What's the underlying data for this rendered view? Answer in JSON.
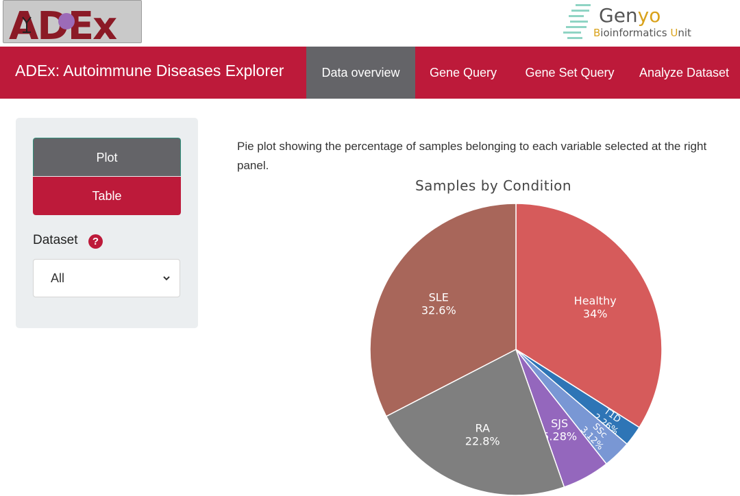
{
  "header": {
    "logo_text": "ADEx",
    "partner_logo": {
      "title_prefix": "Gen",
      "title_suffix": "yo",
      "subtitle_b": "B",
      "subtitle_mid": "ioinformatics ",
      "subtitle_u": "U",
      "subtitle_end": "nit"
    }
  },
  "navbar": {
    "brand": "ADEx: Autoimmune Diseases Explorer",
    "items": [
      {
        "label": "Data overview",
        "active": true
      },
      {
        "label": "Gene Query",
        "active": false
      },
      {
        "label": "Gene Set Query",
        "active": false
      },
      {
        "label": "Analyze Dataset",
        "active": false
      }
    ]
  },
  "sidebar": {
    "view_buttons": [
      "Plot",
      "Table"
    ],
    "dataset_label": "Dataset",
    "help_icon_glyph": "?",
    "dataset_selected": "All"
  },
  "main": {
    "description": "Pie plot showing the percentage of samples belonging to each variable selected at the right panel."
  },
  "colors": {
    "brand_red": "#bd1a3a",
    "nav_active": "#646468",
    "sidebar_bg": "#ebeef0"
  },
  "chart_data": {
    "type": "pie",
    "title": "Samples by Condition",
    "slices": [
      {
        "label": "Healthy",
        "value": 34,
        "text": "34%",
        "color": "#d65b5b"
      },
      {
        "label": "T1D",
        "value": 2.26,
        "text": "2.26%",
        "color": "#2e75b6"
      },
      {
        "label": "SSc",
        "value": 3.12,
        "text": "3.12%",
        "color": "#7997d4"
      },
      {
        "label": "SJS",
        "value": 5.28,
        "text": "5.28%",
        "color": "#9467bd"
      },
      {
        "label": "RA",
        "value": 22.8,
        "text": "22.8%",
        "color": "#7f7f7f"
      },
      {
        "label": "SLE",
        "value": 32.6,
        "text": "32.6%",
        "color": "#a8665a"
      }
    ]
  }
}
